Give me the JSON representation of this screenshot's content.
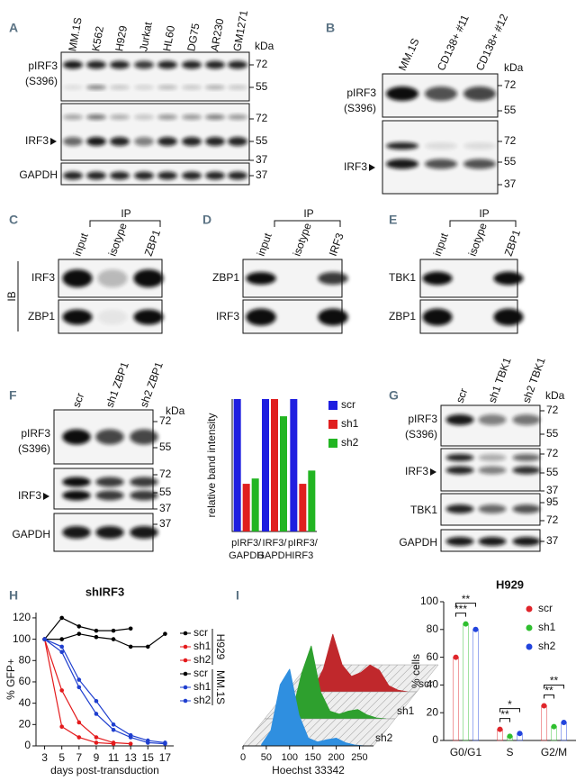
{
  "panels": {
    "A": {
      "label": "A",
      "lanes": [
        "MM.1S",
        "K562",
        "H929",
        "Jurkat",
        "HL60",
        "DG75",
        "AR230",
        "GM1271"
      ],
      "unit": "kDa",
      "rows": [
        {
          "name": [
            "pIRF3",
            "(S396)"
          ],
          "markers": [
            72,
            55
          ]
        },
        {
          "name": [
            "IRF3"
          ],
          "arrow": true,
          "markers": [
            72,
            55,
            37
          ]
        },
        {
          "name": [
            "GAPDH"
          ],
          "markers": [
            37
          ]
        }
      ]
    },
    "B": {
      "label": "B",
      "lanes": [
        "MM.1S",
        "CD138+ #11",
        "CD138+ #12"
      ],
      "unit": "kDa",
      "rows": [
        {
          "name": [
            "pIRF3",
            "(S396)"
          ],
          "markers": [
            72,
            55
          ]
        },
        {
          "name": [
            "IRF3"
          ],
          "arrow": true,
          "markers": [
            72,
            55,
            37
          ]
        }
      ]
    },
    "C": {
      "label": "C",
      "group": "IP",
      "side": "IB",
      "lanes": [
        "input",
        "isotype",
        "ZBP1"
      ],
      "rows": [
        {
          "name": [
            "IRF3"
          ]
        },
        {
          "name": [
            "ZBP1"
          ]
        }
      ]
    },
    "D": {
      "label": "D",
      "group": "IP",
      "lanes": [
        "input",
        "isotype",
        "IRF3"
      ],
      "rows": [
        {
          "name": [
            "ZBP1"
          ]
        },
        {
          "name": [
            "IRF3"
          ]
        }
      ]
    },
    "E": {
      "label": "E",
      "group": "IP",
      "lanes": [
        "input",
        "isotype",
        "ZBP1"
      ],
      "rows": [
        {
          "name": [
            "TBK1"
          ]
        },
        {
          "name": [
            "ZBP1"
          ]
        }
      ]
    },
    "F": {
      "label": "F",
      "lanes": [
        "scr",
        "sh1 ZBP1",
        "sh2 ZBP1"
      ],
      "unit": "kDa",
      "rows": [
        {
          "name": [
            "pIRF3",
            "(S396)"
          ],
          "markers": [
            72,
            55
          ]
        },
        {
          "name": [
            "IRF3"
          ],
          "arrow": true,
          "markers": [
            72,
            55,
            37
          ]
        },
        {
          "name": [
            "GAPDH"
          ],
          "markers": [
            37
          ]
        }
      ]
    },
    "G": {
      "label": "G",
      "lanes": [
        "scr",
        "sh1 TBK1",
        "sh2 TBK1"
      ],
      "unit": "kDa",
      "rows": [
        {
          "name": [
            "pIRF3",
            "(S396)"
          ],
          "markers": [
            72,
            55
          ]
        },
        {
          "name": [
            "IRF3"
          ],
          "arrow": true,
          "markers": [
            72,
            55,
            37
          ]
        },
        {
          "name": [
            "TBK1"
          ],
          "markers": [
            95,
            72
          ]
        },
        {
          "name": [
            "GAPDH"
          ],
          "markers": [
            37
          ]
        }
      ]
    },
    "H": {
      "label": "H"
    },
    "I": {
      "label": "I"
    }
  },
  "chart_data": [
    {
      "type": "bar",
      "y_label": "relative band intensity",
      "categories": [
        [
          "pIRF3/",
          "GAPDH"
        ],
        [
          "IRF3/",
          "GAPDH"
        ],
        [
          "pIRF3/",
          "IRF3"
        ]
      ],
      "series": [
        {
          "name": "scr",
          "color": "#1f1fe0",
          "values": [
            100,
            100,
            100
          ]
        },
        {
          "name": "sh1",
          "color": "#e01f1f",
          "values": [
            36,
            100,
            36
          ]
        },
        {
          "name": "sh2",
          "color": "#22b522",
          "values": [
            40,
            87,
            46
          ]
        }
      ],
      "ylim": [
        0,
        100
      ],
      "legend": "right"
    },
    {
      "type": "line",
      "title": "shIRF3",
      "x_label": "days post-transduction",
      "y_label": "% GFP+",
      "x": [
        3,
        5,
        7,
        9,
        11,
        13,
        15,
        17
      ],
      "xlim": [
        2,
        18
      ],
      "xticks": [
        3,
        5,
        7,
        9,
        11,
        13,
        15,
        17
      ],
      "ylim": [
        0,
        125
      ],
      "yticks": [
        0,
        20,
        40,
        60,
        80,
        100,
        120
      ],
      "series": [
        {
          "name": "scr",
          "group": "H929",
          "color": "#000000",
          "values": [
            100,
            120,
            112,
            108,
            108,
            110,
            null,
            null
          ]
        },
        {
          "name": "sh1",
          "group": "H929",
          "color": "#e41a1c",
          "values": [
            100,
            18,
            8,
            3,
            2,
            null,
            null,
            null
          ]
        },
        {
          "name": "sh2",
          "group": "H929",
          "color": "#e41a1c",
          "values": [
            100,
            52,
            22,
            8,
            3,
            2,
            null,
            null
          ]
        },
        {
          "name": "scr",
          "group": "MM.1S",
          "color": "#000000",
          "values": [
            100,
            100,
            105,
            102,
            100,
            93,
            93,
            105
          ]
        },
        {
          "name": "sh1",
          "group": "MM.1S",
          "color": "#1f3fcf",
          "values": [
            100,
            88,
            55,
            30,
            15,
            8,
            3,
            2
          ]
        },
        {
          "name": "sh2",
          "group": "MM.1S",
          "color": "#1f3fcf",
          "values": [
            100,
            93,
            62,
            42,
            20,
            10,
            5,
            3
          ]
        }
      ],
      "legend": "right"
    },
    {
      "type": "ridgeline",
      "x_label": "Hoechst 33342",
      "x": [
        40,
        60,
        80,
        100,
        120,
        140,
        160,
        180,
        200,
        220,
        240,
        260
      ],
      "xlim": [
        0,
        280
      ],
      "xticks": [
        0,
        50,
        100,
        150,
        200,
        250
      ],
      "ylim": [
        0,
        100
      ],
      "series": [
        {
          "name": "scr",
          "color": "#c0282c",
          "values": [
            1,
            5,
            30,
            75,
            35,
            20,
            25,
            35,
            28,
            8,
            2,
            0
          ]
        },
        {
          "name": "sh1",
          "color": "#2ea02e",
          "values": [
            1,
            10,
            60,
            95,
            35,
            10,
            6,
            10,
            12,
            5,
            1,
            0
          ]
        },
        {
          "name": "sh2",
          "color": "#2f8fe0",
          "values": [
            2,
            20,
            80,
            100,
            40,
            10,
            5,
            8,
            10,
            4,
            1,
            0
          ]
        }
      ]
    },
    {
      "type": "dotbar",
      "title": "H929",
      "y_label": "% cells",
      "categories": [
        "G0/G1",
        "S",
        "G2/M"
      ],
      "ylim": [
        0,
        100
      ],
      "yticks": [
        0,
        20,
        40,
        60,
        80,
        100
      ],
      "series": [
        {
          "name": "scr",
          "color": "#e0252b",
          "values": [
            60,
            8,
            25
          ]
        },
        {
          "name": "sh1",
          "color": "#2fbf2f",
          "values": [
            84,
            3,
            10
          ]
        },
        {
          "name": "sh2",
          "color": "#2244dd",
          "values": [
            80,
            5,
            13
          ]
        }
      ],
      "annotations": [
        {
          "text": "***",
          "category": "G0/G1",
          "between": [
            "scr",
            "sh1"
          ]
        },
        {
          "text": "**",
          "category": "G0/G1",
          "between": [
            "scr",
            "sh2"
          ]
        },
        {
          "text": "**",
          "category": "S",
          "between": [
            "scr",
            "sh1"
          ]
        },
        {
          "text": "*",
          "category": "S",
          "between": [
            "scr",
            "sh2"
          ]
        },
        {
          "text": "**",
          "category": "G2/M",
          "between": [
            "scr",
            "sh1"
          ]
        },
        {
          "text": "**",
          "category": "G2/M",
          "between": [
            "scr",
            "sh2"
          ]
        }
      ],
      "legend": "upper right"
    }
  ]
}
